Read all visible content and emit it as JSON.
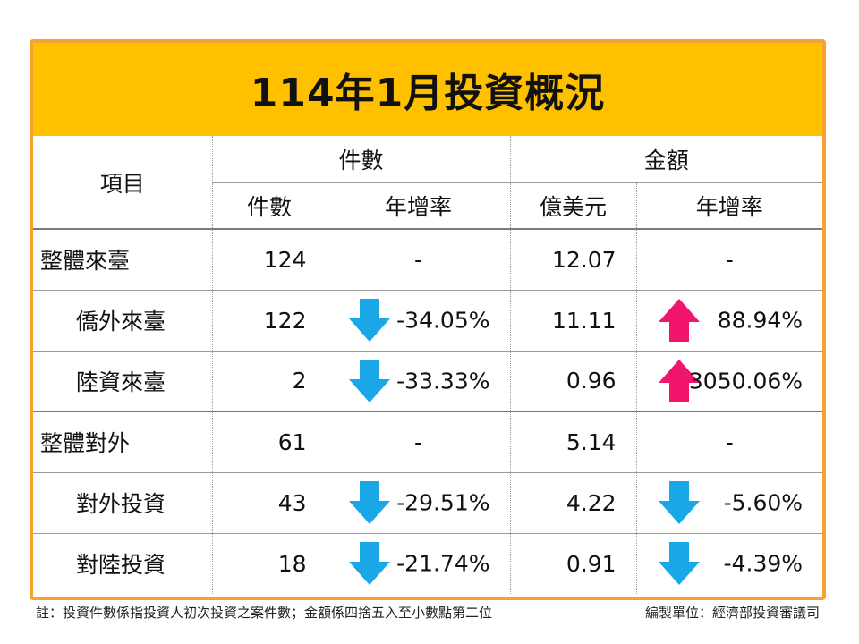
{
  "title": "114年1月投資概況",
  "header": {
    "item_label": "項目",
    "count_group": "件數",
    "amount_group": "金額",
    "count_col": "件數",
    "count_rate_col": "年增率",
    "amount_col": "億美元",
    "amount_rate_col": "年增率"
  },
  "colors": {
    "title_bg": "#ffc000",
    "frame": "#f7a133",
    "down_arrow": "#1aa7e8",
    "up_arrow": "#f0146a"
  },
  "rows": [
    {
      "name": "整體來臺",
      "count": "124",
      "count_rate": "-",
      "count_trend": "none",
      "amount": "12.07",
      "amount_rate": "-",
      "amount_trend": "none"
    },
    {
      "name": "僑外來臺",
      "count": "122",
      "count_rate": "-34.05%",
      "count_trend": "down",
      "amount": "11.11",
      "amount_rate": "88.94%",
      "amount_trend": "up"
    },
    {
      "name": "陸資來臺",
      "count": "2",
      "count_rate": "-33.33%",
      "count_trend": "down",
      "amount": "0.96",
      "amount_rate": "3050.06%",
      "amount_trend": "up"
    },
    {
      "name": "整體對外",
      "count": "61",
      "count_rate": "-",
      "count_trend": "none",
      "amount": "5.14",
      "amount_rate": "-",
      "amount_trend": "none"
    },
    {
      "name": "對外投資",
      "count": "43",
      "count_rate": "-29.51%",
      "count_trend": "down",
      "amount": "4.22",
      "amount_rate": "-5.60%",
      "amount_trend": "down"
    },
    {
      "name": "對陸投資",
      "count": "18",
      "count_rate": "-21.74%",
      "count_trend": "down",
      "amount": "0.91",
      "amount_rate": "-4.39%",
      "amount_trend": "down"
    }
  ],
  "footer": {
    "note": "註：投資件數係指投資人初次投資之案件數；金額係四捨五入至小數點第二位",
    "org": "編製單位：經濟部投資審議司"
  }
}
